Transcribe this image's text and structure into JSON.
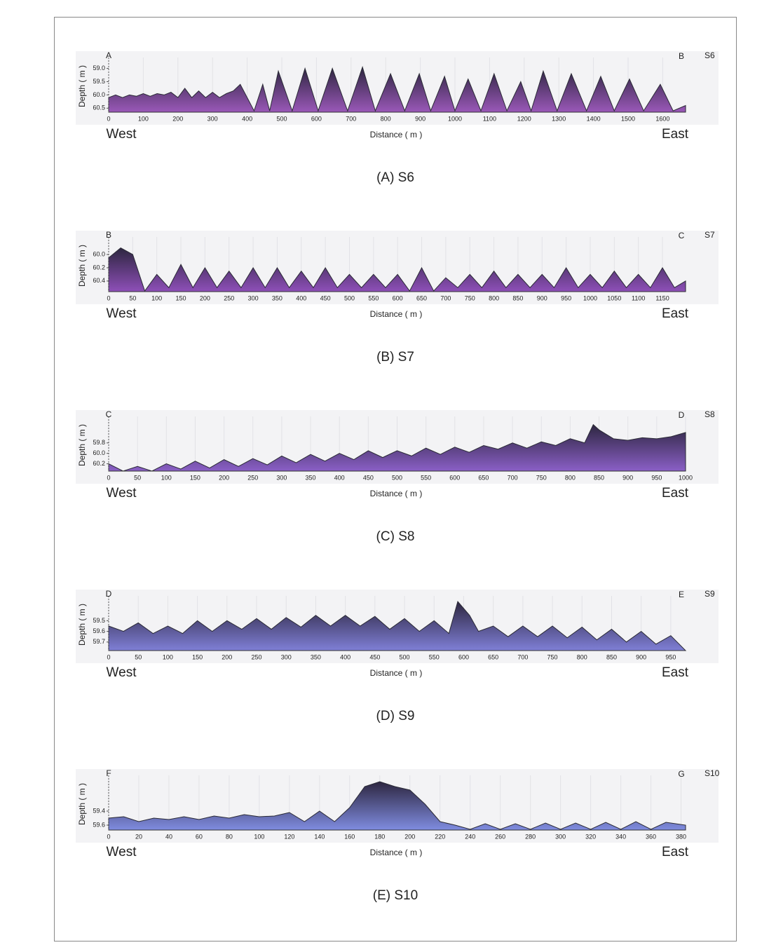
{
  "chart_data": [
    {
      "type": "area",
      "left_label": "A",
      "right_label": "B",
      "id_label": "S6",
      "ylabel": "Depth ( m )",
      "xlabel": "Distance ( m )",
      "west": "West",
      "east": "East",
      "caption": "(A) S6",
      "color": "#9a58b8",
      "xlim": [
        0,
        1666
      ],
      "ylim": [
        60.65,
        58.8
      ],
      "xticks": [
        0,
        100,
        200,
        300,
        400,
        500,
        600,
        700,
        800,
        900,
        1000,
        1100,
        1200,
        1300,
        1400,
        1500,
        1600
      ],
      "yticks": [
        {
          "value": 59,
          "label": "59.0"
        },
        59.5,
        {
          "value": 60,
          "label": "60.0"
        },
        60.5
      ],
      "x": [
        0,
        20,
        40,
        60,
        80,
        100,
        120,
        140,
        160,
        180,
        200,
        220,
        240,
        260,
        280,
        300,
        320,
        340,
        360,
        380,
        420,
        445,
        465,
        490,
        530,
        567,
        605,
        646,
        690,
        733,
        770,
        814,
        855,
        897,
        930,
        970,
        1000,
        1038,
        1075,
        1113,
        1150,
        1190,
        1220,
        1255,
        1295,
        1336,
        1380,
        1421,
        1460,
        1504,
        1545,
        1593,
        1630,
        1666
      ],
      "values": [
        60.1,
        60.0,
        60.1,
        60.0,
        60.05,
        59.95,
        60.05,
        59.95,
        60.0,
        59.9,
        60.1,
        59.75,
        60.1,
        59.85,
        60.1,
        59.9,
        60.1,
        59.95,
        59.85,
        59.6,
        60.6,
        59.6,
        60.6,
        59.1,
        60.6,
        59.0,
        60.6,
        59.0,
        60.6,
        58.95,
        60.6,
        59.2,
        60.6,
        59.2,
        60.6,
        59.3,
        60.6,
        59.4,
        60.6,
        59.2,
        60.6,
        59.5,
        60.6,
        59.1,
        60.6,
        59.2,
        60.6,
        59.3,
        60.6,
        59.4,
        60.6,
        59.6,
        60.6,
        60.4
      ]
    },
    {
      "type": "area",
      "left_label": "B",
      "right_label": "C",
      "id_label": "S7",
      "ylabel": "Depth ( m )",
      "xlabel": "Distance ( m )",
      "west": "West",
      "east": "East",
      "caption": "(B) S7",
      "color": "#8e4fb8",
      "xlim": [
        0,
        1198
      ],
      "ylim": [
        60.56,
        59.82
      ],
      "xticks": [
        0,
        50,
        100,
        150,
        200,
        250,
        300,
        350,
        400,
        450,
        500,
        550,
        600,
        650,
        700,
        750,
        800,
        850,
        900,
        950,
        1000,
        1050,
        1100,
        1150
      ],
      "yticks": [
        {
          "value": 60,
          "label": "60.0"
        },
        60.2,
        60.4
      ],
      "x": [
        0,
        25,
        50,
        75,
        100,
        125,
        150,
        175,
        200,
        225,
        250,
        275,
        300,
        325,
        350,
        375,
        400,
        425,
        450,
        475,
        500,
        525,
        550,
        575,
        600,
        625,
        650,
        675,
        700,
        725,
        750,
        775,
        800,
        825,
        850,
        875,
        900,
        925,
        950,
        975,
        1000,
        1025,
        1050,
        1075,
        1100,
        1125,
        1150,
        1175,
        1198
      ],
      "values": [
        60.05,
        59.9,
        60.0,
        60.55,
        60.3,
        60.5,
        60.15,
        60.5,
        60.2,
        60.5,
        60.25,
        60.5,
        60.2,
        60.5,
        60.2,
        60.5,
        60.25,
        60.5,
        60.2,
        60.5,
        60.3,
        60.5,
        60.3,
        60.5,
        60.3,
        60.55,
        60.2,
        60.55,
        60.35,
        60.5,
        60.3,
        60.5,
        60.25,
        60.5,
        60.3,
        60.5,
        60.3,
        60.5,
        60.2,
        60.5,
        60.3,
        60.5,
        60.25,
        60.5,
        60.3,
        60.5,
        60.2,
        60.5,
        60.4
      ]
    },
    {
      "type": "area",
      "left_label": "C",
      "right_label": "D",
      "id_label": "S8",
      "ylabel": "Depth ( m )",
      "xlabel": "Distance ( m )",
      "west": "West",
      "east": "East",
      "caption": "(C) S8",
      "color": "#8a5fc6",
      "xlim": [
        0,
        1000
      ],
      "ylim": [
        60.34,
        59.4
      ],
      "xticks": [
        0,
        50,
        100,
        150,
        200,
        250,
        300,
        350,
        400,
        450,
        500,
        550,
        600,
        650,
        700,
        750,
        800,
        850,
        900,
        950,
        1000
      ],
      "yticks": [
        59.8,
        {
          "value": 60,
          "label": "60.0"
        },
        60.2
      ],
      "x": [
        0,
        25,
        50,
        75,
        100,
        125,
        150,
        175,
        200,
        225,
        250,
        275,
        300,
        325,
        350,
        375,
        400,
        425,
        450,
        475,
        500,
        525,
        550,
        575,
        600,
        625,
        650,
        675,
        700,
        725,
        750,
        775,
        800,
        825,
        840,
        850,
        875,
        900,
        925,
        950,
        975,
        1000
      ],
      "values": [
        60.2,
        60.34,
        60.25,
        60.34,
        60.2,
        60.3,
        60.15,
        60.28,
        60.12,
        60.25,
        60.1,
        60.22,
        60.05,
        60.18,
        60.02,
        60.15,
        60.0,
        60.12,
        59.95,
        60.08,
        59.95,
        60.05,
        59.9,
        60.02,
        59.88,
        59.98,
        59.85,
        59.92,
        59.8,
        59.9,
        59.78,
        59.85,
        59.72,
        59.8,
        59.45,
        59.55,
        59.72,
        59.75,
        59.7,
        59.72,
        59.68,
        59.6
      ]
    },
    {
      "type": "area",
      "left_label": "D",
      "right_label": "E",
      "id_label": "S9",
      "ylabel": "Depth ( m )",
      "xlabel": "Distance ( m )",
      "west": "West",
      "east": "East",
      "caption": "(D) S9",
      "color": "#7f7fd6",
      "xlim": [
        0,
        975
      ],
      "ylim": [
        59.78,
        59.32
      ],
      "xticks": [
        0,
        50,
        100,
        150,
        200,
        250,
        300,
        350,
        400,
        450,
        500,
        550,
        600,
        650,
        700,
        750,
        800,
        850,
        900,
        950
      ],
      "yticks": [
        59.5,
        59.6,
        59.7
      ],
      "x": [
        0,
        25,
        50,
        75,
        100,
        125,
        150,
        175,
        200,
        225,
        250,
        275,
        300,
        325,
        350,
        375,
        400,
        425,
        450,
        475,
        500,
        525,
        550,
        575,
        590,
        610,
        625,
        650,
        675,
        700,
        725,
        750,
        775,
        800,
        825,
        850,
        875,
        900,
        925,
        950,
        975
      ],
      "values": [
        59.55,
        59.6,
        59.52,
        59.62,
        59.55,
        59.62,
        59.5,
        59.6,
        59.5,
        59.58,
        59.48,
        59.58,
        59.47,
        59.56,
        59.45,
        59.55,
        59.45,
        59.55,
        59.46,
        59.58,
        59.48,
        59.6,
        59.5,
        59.62,
        59.32,
        59.45,
        59.6,
        59.55,
        59.65,
        59.55,
        59.65,
        59.55,
        59.66,
        59.56,
        59.68,
        59.58,
        59.7,
        59.6,
        59.72,
        59.64,
        59.78
      ]
    },
    {
      "type": "area",
      "left_label": "F",
      "right_label": "G",
      "id_label": "S10",
      "ylabel": "Depth ( m )",
      "xlabel": "Distance ( m )",
      "west": "West",
      "east": "East",
      "caption": "(E) S10",
      "color": "#7f8ce0",
      "xlim": [
        0,
        383
      ],
      "ylim": [
        59.67,
        58.97
      ],
      "xticks": [
        0,
        20,
        40,
        60,
        80,
        100,
        120,
        140,
        160,
        180,
        200,
        220,
        240,
        260,
        280,
        300,
        320,
        340,
        360,
        380
      ],
      "yticks": [
        59.4,
        59.6
      ],
      "x": [
        0,
        10,
        20,
        30,
        40,
        50,
        60,
        70,
        80,
        90,
        100,
        110,
        120,
        130,
        140,
        150,
        160,
        170,
        180,
        190,
        200,
        210,
        220,
        230,
        240,
        250,
        260,
        270,
        280,
        290,
        300,
        310,
        320,
        330,
        340,
        350,
        360,
        370,
        383
      ],
      "values": [
        59.5,
        59.48,
        59.55,
        59.5,
        59.52,
        59.48,
        59.52,
        59.47,
        59.5,
        59.45,
        59.48,
        59.47,
        59.42,
        59.55,
        59.4,
        59.55,
        59.35,
        59.05,
        58.98,
        59.05,
        59.1,
        59.3,
        59.55,
        59.6,
        59.66,
        59.58,
        59.66,
        59.58,
        59.66,
        59.57,
        59.66,
        59.57,
        59.66,
        59.56,
        59.66,
        59.55,
        59.66,
        59.56,
        59.6
      ]
    }
  ]
}
